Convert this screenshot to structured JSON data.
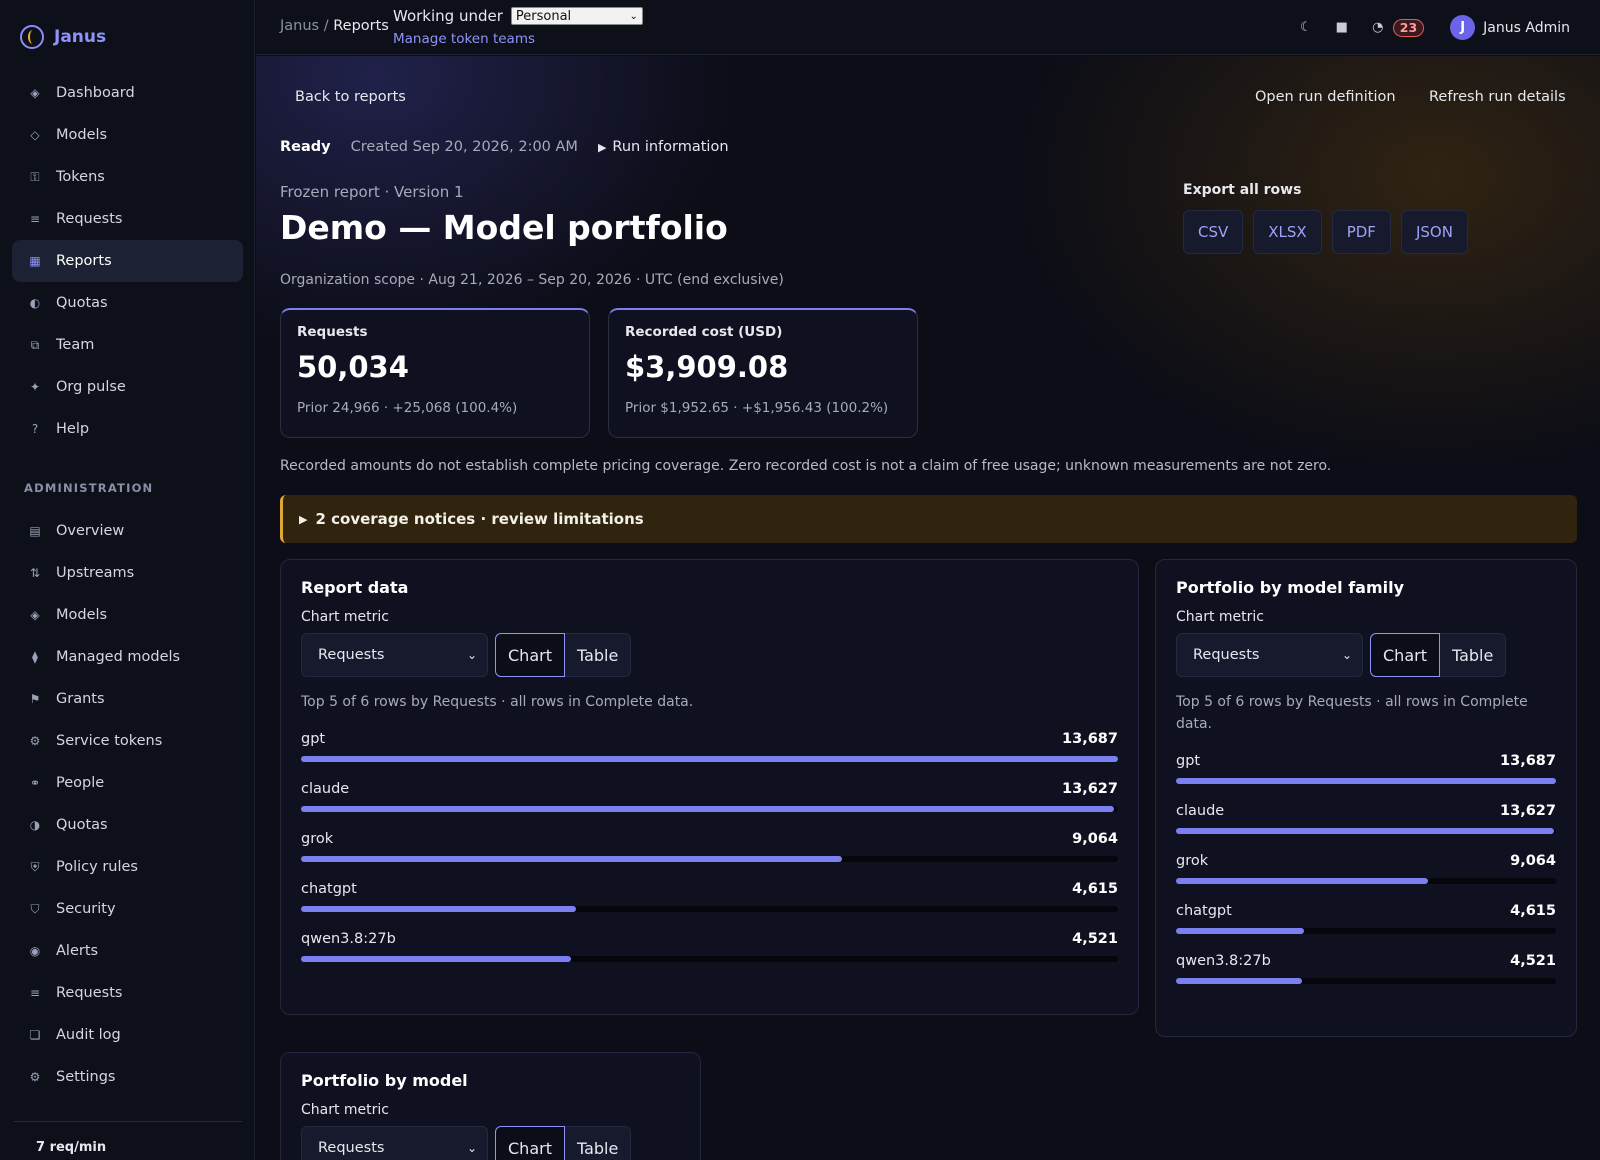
{
  "app": {
    "name": "Janus"
  },
  "sidebar": {
    "items": [
      {
        "label": "Dashboard",
        "icon": "diamond-icon",
        "glyph": "◈"
      },
      {
        "label": "Models",
        "icon": "diamond-outline-icon",
        "glyph": "◇"
      },
      {
        "label": "Tokens",
        "icon": "key-icon",
        "glyph": "⚿"
      },
      {
        "label": "Requests",
        "icon": "list-icon",
        "glyph": "≡"
      },
      {
        "label": "Reports",
        "icon": "report-icon",
        "glyph": "▦",
        "active": true
      },
      {
        "label": "Quotas",
        "icon": "half-circle-icon",
        "glyph": "◐"
      },
      {
        "label": "Team",
        "icon": "team-icon",
        "glyph": "⧉"
      },
      {
        "label": "Org pulse",
        "icon": "sparkle-icon",
        "glyph": "✦"
      },
      {
        "label": "Help",
        "icon": "help-icon",
        "glyph": "?"
      }
    ],
    "admin_section_label": "ADMINISTRATION",
    "admin_items": [
      {
        "label": "Overview",
        "icon": "overview-icon",
        "glyph": "▤"
      },
      {
        "label": "Upstreams",
        "icon": "arrows-icon",
        "glyph": "⇅"
      },
      {
        "label": "Models",
        "icon": "diamond-icon",
        "glyph": "◈"
      },
      {
        "label": "Managed models",
        "icon": "cube-icon",
        "glyph": "⧫"
      },
      {
        "label": "Grants",
        "icon": "flag-icon",
        "glyph": "⚑"
      },
      {
        "label": "Service tokens",
        "icon": "gear-icon",
        "glyph": "⚙"
      },
      {
        "label": "People",
        "icon": "people-icon",
        "glyph": "⚭"
      },
      {
        "label": "Quotas",
        "icon": "half-circle-icon",
        "glyph": "◑"
      },
      {
        "label": "Policy rules",
        "icon": "shield-icon",
        "glyph": "⛨"
      },
      {
        "label": "Security",
        "icon": "shield-outline-icon",
        "glyph": "⛉"
      },
      {
        "label": "Alerts",
        "icon": "alert-icon",
        "glyph": "◉"
      },
      {
        "label": "Requests",
        "icon": "list-icon",
        "glyph": "≡"
      },
      {
        "label": "Audit log",
        "icon": "log-icon",
        "glyph": "❏"
      },
      {
        "label": "Settings",
        "icon": "gear-icon",
        "glyph": "⚙"
      }
    ],
    "footer_rate": "7 req/min"
  },
  "topbar": {
    "breadcrumb_root": "Janus",
    "breadcrumb_sep": " / ",
    "breadcrumb_current": "Reports",
    "working_under_label": "Working under",
    "team_selected": "Personal",
    "manage_link": "Manage token teams",
    "theme_icon": "moon-icon",
    "stop_icon": "square-icon",
    "alerts_icon": "pie-icon",
    "alerts_count": "23",
    "user_initial": "J",
    "user_name": "Janus Admin"
  },
  "main": {
    "back_link": "Back to reports",
    "open_run_definition": "Open run definition",
    "refresh_run_details": "Refresh run details",
    "status": "Ready",
    "created": "Created Sep 20, 2026, 2:00 AM",
    "run_information": "Run information",
    "frozen_label": "Frozen report · Version 1",
    "title": "Demo — Model portfolio",
    "scope": "Organization scope · Aug 21, 2026 – Sep 20, 2026 · UTC (end exclusive)",
    "export": {
      "label": "Export all rows",
      "formats": [
        "CSV",
        "XLSX",
        "PDF",
        "JSON"
      ]
    },
    "stats": [
      {
        "label": "Requests",
        "value": "50,034",
        "prior": "Prior 24,966 · +25,068 (100.4%)"
      },
      {
        "label": "Recorded cost (USD)",
        "value": "$3,909.08",
        "prior": "Prior $1,952.65 · +$1,956.43 (100.2%)"
      }
    ],
    "disclaimer": "Recorded amounts do not establish complete pricing coverage. Zero recorded cost is not a claim of free usage; unknown measurements are not zero.",
    "notices": "2 coverage notices · review limitations"
  },
  "panels": {
    "report_data": {
      "title": "Report data",
      "metric_label": "Chart metric",
      "metric_selected": "Requests",
      "chart_btn": "Chart",
      "table_btn": "Table",
      "note": "Top 5 of 6 rows by Requests · all rows in Complete data."
    },
    "by_family": {
      "title": "Portfolio by model family",
      "metric_label": "Chart metric",
      "metric_selected": "Requests",
      "chart_btn": "Chart",
      "table_btn": "Table",
      "note": "Top 5 of 6 rows by Requests · all rows in Complete data."
    },
    "by_model": {
      "title": "Portfolio by model",
      "metric_label": "Chart metric",
      "metric_selected": "Requests",
      "chart_btn": "Chart",
      "table_btn": "Table"
    }
  },
  "chart_data": [
    {
      "type": "bar",
      "title": "Report data",
      "categories": [
        "gpt",
        "claude",
        "grok",
        "chatgpt",
        "qwen3.8:27b"
      ],
      "values": [
        13687,
        13627,
        9064,
        4615,
        4521
      ],
      "value_labels": [
        "13,687",
        "13,627",
        "9,064",
        "4,615",
        "4,521"
      ],
      "xlim": [
        0,
        13687
      ],
      "bar_color": "#7c7ff0"
    },
    {
      "type": "bar",
      "title": "Portfolio by model family",
      "categories": [
        "gpt",
        "claude",
        "grok",
        "chatgpt",
        "qwen3.8:27b"
      ],
      "values": [
        13687,
        13627,
        9064,
        4615,
        4521
      ],
      "value_labels": [
        "13,687",
        "13,627",
        "9,064",
        "4,615",
        "4,521"
      ],
      "xlim": [
        0,
        13687
      ],
      "bar_color": "#7c7ff0"
    }
  ]
}
